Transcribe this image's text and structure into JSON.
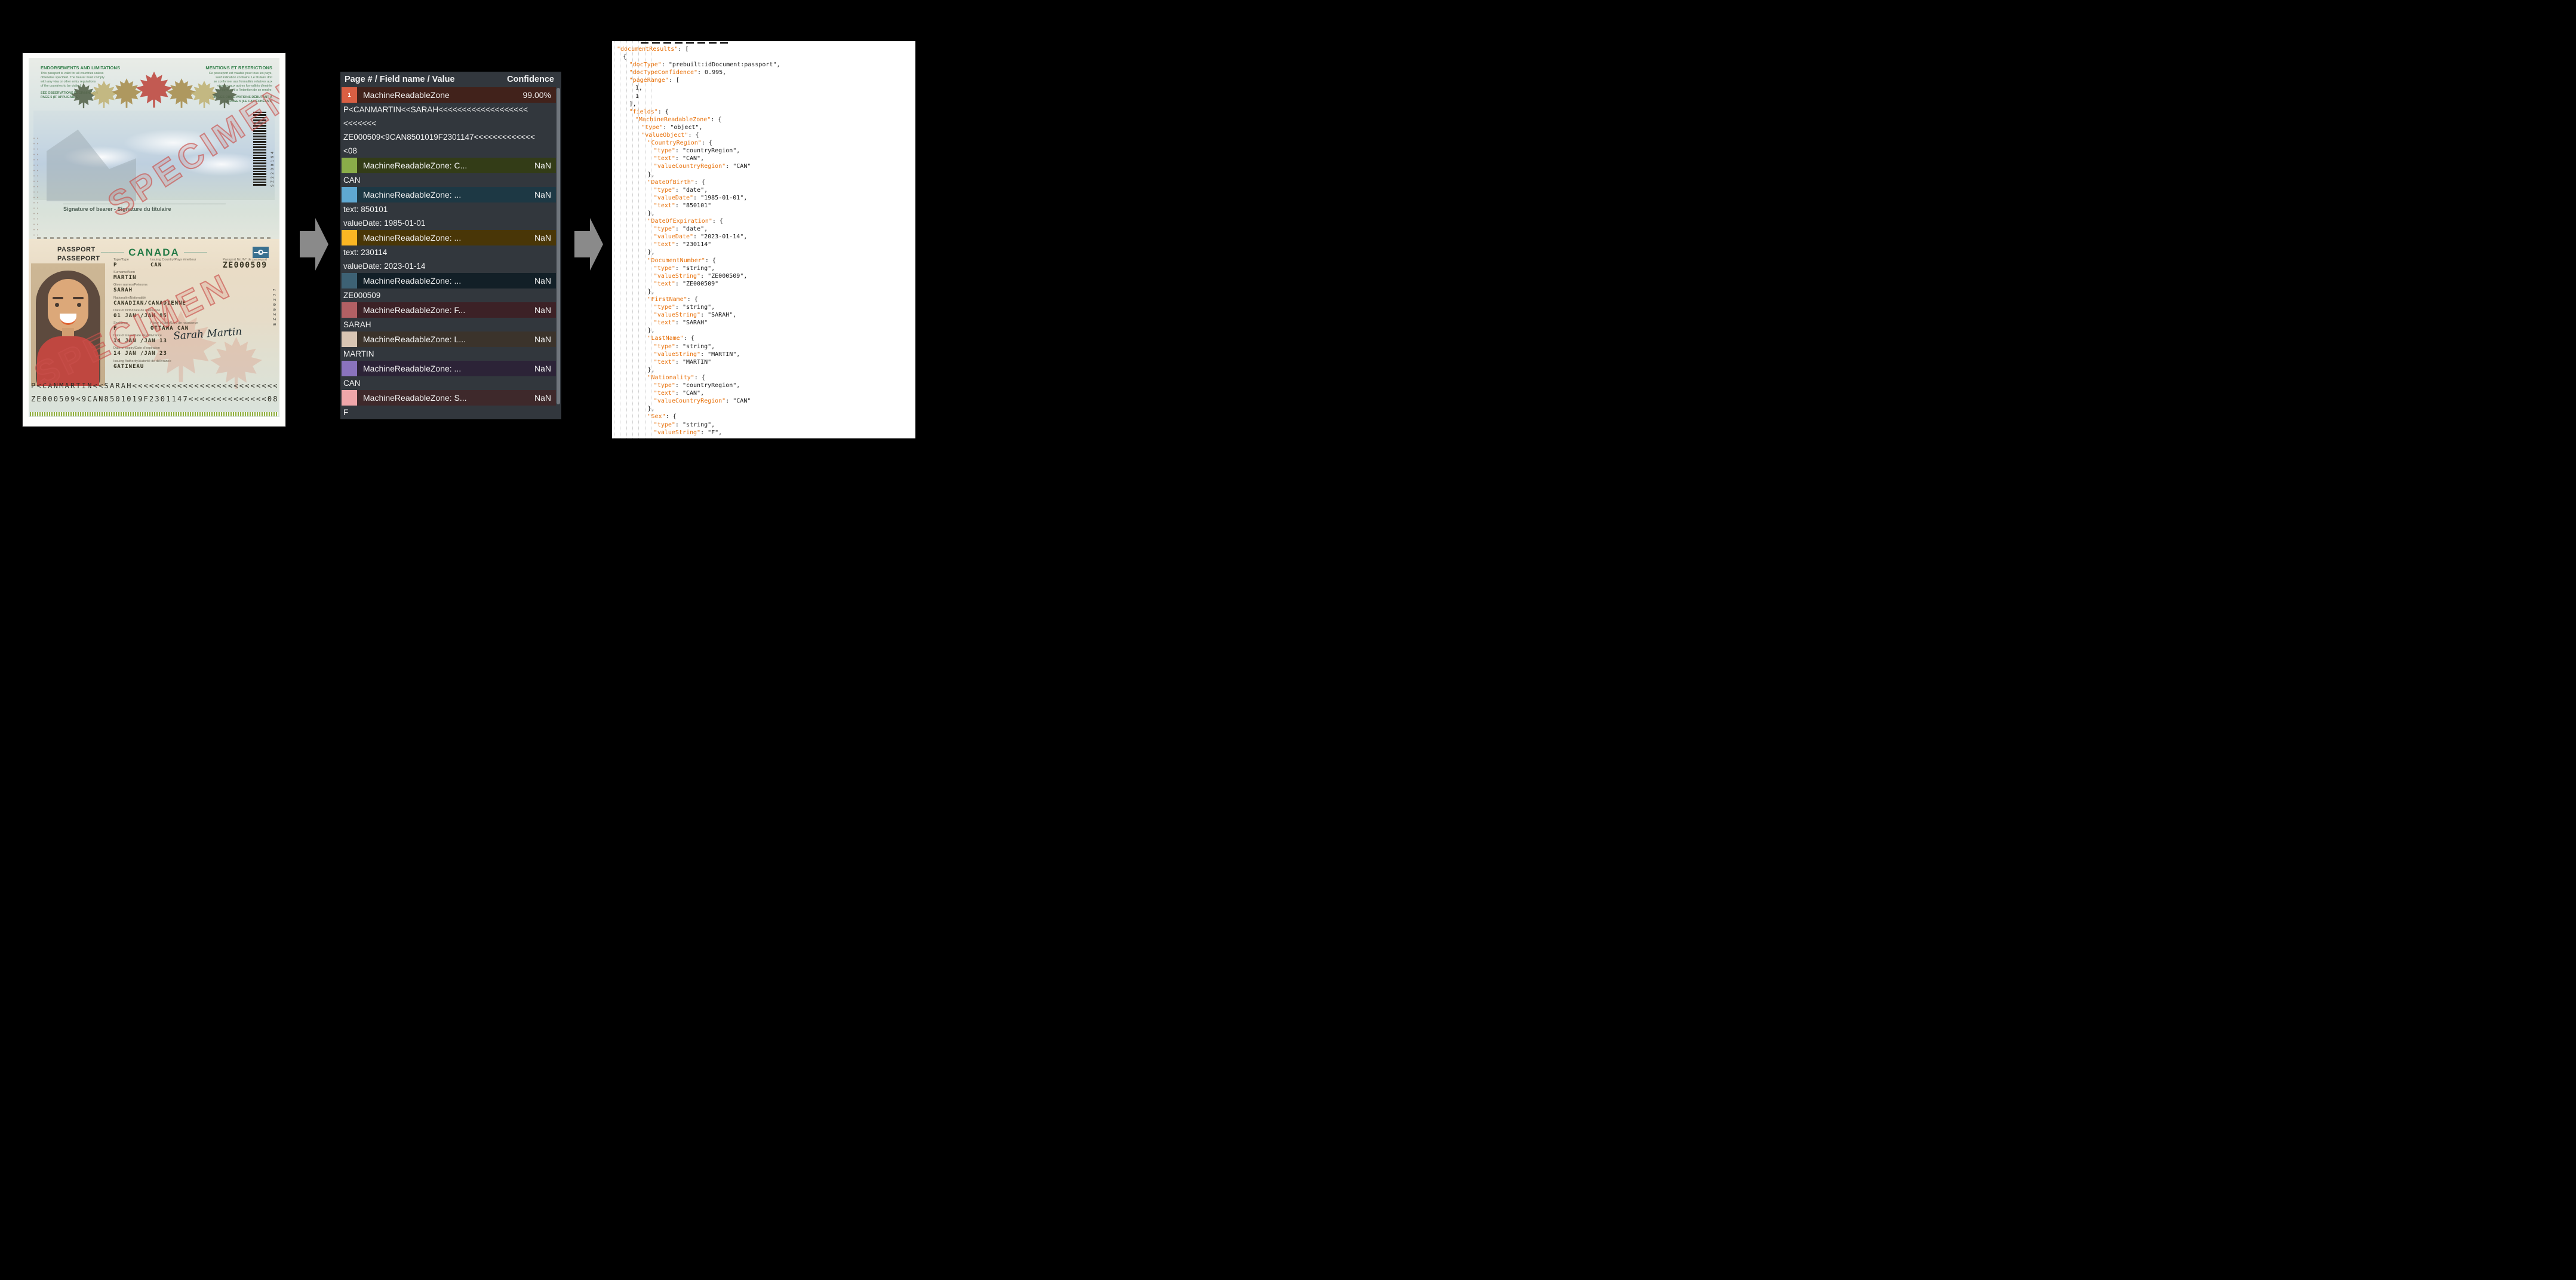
{
  "colors": {
    "background": "#000000",
    "arrow_gray": "#8a8a8a",
    "panel_bg": "#32373d",
    "json_key_orange": "#e8710a",
    "canada_green": "#237a46",
    "specimen_red": "#c9504c"
  },
  "passport": {
    "back_page": {
      "endorsements_title": "ENDORSEMENTS AND LIMITATIONS",
      "endorsements_lines": [
        "This passport is valid for all countries unless",
        "otherwise specified. The bearer must comply",
        "with any visa or other entry regulations",
        "of the countries to be visited."
      ],
      "endorsements_note_line1": "SEE OBSERVATIONS BEGINNING ON",
      "endorsements_note_line2": "PAGE 5 (IF APPLICABLE)",
      "mentions_title": "MENTIONS ET RESTRICTIONS",
      "mentions_lines": [
        "Ce passeport est valable pour tous les pays,",
        "sauf indication contraire. Le titulaire doit",
        "se conformer aux formalités relatives aux",
        "visas ou aux autres formalités d'entrée",
        "des pays où il a l'intention de se rendre."
      ],
      "mentions_note_line1": "VOIR LES OBSERVATIONS DÉBUTANT À",
      "mentions_note_line2": "LA PAGE 5 (LE CAS ÉCHÉANT)",
      "signature_label": "Signature of bearer - Signature du titulaire",
      "barcode_number": "SZ2200194",
      "specimen_text": "SPECIMEN",
      "leaf_colors": [
        "#57654c",
        "#c0b277",
        "#a98f50",
        "#bf4a41",
        "#a98f50",
        "#c0b277",
        "#57654c"
      ]
    },
    "data_page": {
      "passport_label": "PASSPORT",
      "passeport_label": "PASSEPORT",
      "country_title": "CANADA",
      "specimen_text": "SPECIMEN",
      "passport_no_label": "Passport No./N° de passeport",
      "passport_no_value": "ZE000509",
      "field_groups": [
        {
          "row": [
            {
              "label": "Type/Type",
              "value": "P"
            },
            {
              "label": "Issuing Country/Pays émetteur",
              "value": "CAN"
            }
          ]
        },
        {
          "label": "Surname/Nom",
          "value": "MARTIN"
        },
        {
          "label": "Given names/Prénoms",
          "value": "SARAH"
        },
        {
          "label": "Nationality/Nationalité",
          "value": "CANADIAN/CANADIENNE"
        },
        {
          "label": "Date of birth/Date de naissance",
          "value": "01 JAN /JAN  85"
        },
        {
          "row": [
            {
              "label": "Sex/Sexe",
              "value": "F"
            },
            {
              "label": "Place of birth/Lieu de naissance",
              "value": "OTTAWA CAN"
            }
          ]
        },
        {
          "label": "Date of issue/Date de délivrance",
          "value": "14 JAN /JAN  13"
        },
        {
          "label": "Date of expiry/Date d'expiration",
          "value": "14 JAN /JAN  23"
        },
        {
          "label": "Issuing Authority/Autorité de délivrance",
          "value": "GATINEAU"
        }
      ],
      "signature_script": "Sarah Martin",
      "perforation_number": "EZZ00277",
      "mrz_line1": "P<CANMARTIN<<SARAH<<<<<<<<<<<<<<<<<<<<<<<<<<",
      "mrz_line2": "ZE000509<9CAN8501019F2301147<<<<<<<<<<<<<<08"
    }
  },
  "fields_panel": {
    "header_left": "Page # / Field name / Value",
    "header_right": "Confidence",
    "rows": [
      {
        "page": "1",
        "label": "MachineReadableZone",
        "confidence": "99.00%",
        "chip": "#d95f43",
        "row_bg": "#41221b",
        "values": [
          "P<CANMARTIN<<SARAH<<<<<<<<<<<<<<<<<<<",
          "<<<<<<<",
          "ZE000509<9CAN8501019F2301147<<<<<<<<<<<<<",
          "<08"
        ]
      },
      {
        "page": "",
        "label": "MachineReadableZone: C...",
        "confidence": "NaN",
        "chip": "#8aad49",
        "row_bg": "#333c17",
        "values": [
          "CAN"
        ]
      },
      {
        "page": "",
        "label": "MachineReadableZone: ...",
        "confidence": "NaN",
        "chip": "#5fa8d1",
        "row_bg": "#1d3844",
        "values": [
          "text: 850101",
          "valueDate: 1985-01-01"
        ]
      },
      {
        "page": "",
        "label": "MachineReadableZone: ...",
        "confidence": "NaN",
        "chip": "#fbb623",
        "row_bg": "#493607",
        "values": [
          "text: 230114",
          "valueDate: 2023-01-14"
        ]
      },
      {
        "page": "",
        "label": "MachineReadableZone: ...",
        "confidence": "NaN",
        "chip": "#3d6174",
        "row_bg": "#121f27",
        "values": [
          "ZE000509"
        ]
      },
      {
        "page": "",
        "label": "MachineReadableZone: F...",
        "confidence": "NaN",
        "chip": "#b26064",
        "row_bg": "#3c2126",
        "values": [
          "SARAH"
        ]
      },
      {
        "page": "",
        "label": "MachineReadableZone: L...",
        "confidence": "NaN",
        "chip": "#d8c5b3",
        "row_bg": "#3b332b",
        "values": [
          "MARTIN"
        ]
      },
      {
        "page": "",
        "label": "MachineReadableZone: ...",
        "confidence": "NaN",
        "chip": "#8a73bd",
        "row_bg": "#2c2337",
        "values": [
          "CAN"
        ]
      },
      {
        "page": "",
        "label": "MachineReadableZone: S...",
        "confidence": "NaN",
        "chip": "#efa6a9",
        "row_bg": "#3e292b",
        "values": [
          "F"
        ]
      }
    ]
  },
  "json_panel": {
    "lines": [
      {
        "indent": 0,
        "key": "documentResults",
        "rest": ": ["
      },
      {
        "indent": 1,
        "key": null,
        "rest": "{"
      },
      {
        "indent": 2,
        "key": "docType",
        "rest": ": \"prebuilt:idDocument:passport\","
      },
      {
        "indent": 2,
        "key": "docTypeConfidence",
        "rest": ": 0.995,"
      },
      {
        "indent": 2,
        "key": "pageRange",
        "rest": ": ["
      },
      {
        "indent": 3,
        "key": null,
        "rest": "1,"
      },
      {
        "indent": 3,
        "key": null,
        "rest": "1"
      },
      {
        "indent": 2,
        "key": null,
        "rest": "],"
      },
      {
        "indent": 2,
        "key": "fields",
        "rest": ": {"
      },
      {
        "indent": 3,
        "key": "MachineReadableZone",
        "rest": ": {"
      },
      {
        "indent": 4,
        "key": "type",
        "rest": ": \"object\","
      },
      {
        "indent": 4,
        "key": "valueObject",
        "rest": ": {"
      },
      {
        "indent": 5,
        "key": "CountryRegion",
        "rest": ": {"
      },
      {
        "indent": 6,
        "key": "type",
        "rest": ": \"countryRegion\","
      },
      {
        "indent": 6,
        "key": "text",
        "rest": ": \"CAN\","
      },
      {
        "indent": 6,
        "key": "valueCountryRegion",
        "rest": ": \"CAN\""
      },
      {
        "indent": 5,
        "key": null,
        "rest": "},"
      },
      {
        "indent": 5,
        "key": "DateOfBirth",
        "rest": ": {"
      },
      {
        "indent": 6,
        "key": "type",
        "rest": ": \"date\","
      },
      {
        "indent": 6,
        "key": "valueDate",
        "rest": ": \"1985-01-01\","
      },
      {
        "indent": 6,
        "key": "text",
        "rest": ": \"850101\""
      },
      {
        "indent": 5,
        "key": null,
        "rest": "},"
      },
      {
        "indent": 5,
        "key": "DateOfExpiration",
        "rest": ": {"
      },
      {
        "indent": 6,
        "key": "type",
        "rest": ": \"date\","
      },
      {
        "indent": 6,
        "key": "valueDate",
        "rest": ": \"2023-01-14\","
      },
      {
        "indent": 6,
        "key": "text",
        "rest": ": \"230114\""
      },
      {
        "indent": 5,
        "key": null,
        "rest": "},"
      },
      {
        "indent": 5,
        "key": "DocumentNumber",
        "rest": ": {"
      },
      {
        "indent": 6,
        "key": "type",
        "rest": ": \"string\","
      },
      {
        "indent": 6,
        "key": "valueString",
        "rest": ": \"ZE000509\","
      },
      {
        "indent": 6,
        "key": "text",
        "rest": ": \"ZE000509\""
      },
      {
        "indent": 5,
        "key": null,
        "rest": "},"
      },
      {
        "indent": 5,
        "key": "FirstName",
        "rest": ": {"
      },
      {
        "indent": 6,
        "key": "type",
        "rest": ": \"string\","
      },
      {
        "indent": 6,
        "key": "valueString",
        "rest": ": \"SARAH\","
      },
      {
        "indent": 6,
        "key": "text",
        "rest": ": \"SARAH\""
      },
      {
        "indent": 5,
        "key": null,
        "rest": "},"
      },
      {
        "indent": 5,
        "key": "LastName",
        "rest": ": {"
      },
      {
        "indent": 6,
        "key": "type",
        "rest": ": \"string\","
      },
      {
        "indent": 6,
        "key": "valueString",
        "rest": ": \"MARTIN\","
      },
      {
        "indent": 6,
        "key": "text",
        "rest": ": \"MARTIN\""
      },
      {
        "indent": 5,
        "key": null,
        "rest": "},"
      },
      {
        "indent": 5,
        "key": "Nationality",
        "rest": ": {"
      },
      {
        "indent": 6,
        "key": "type",
        "rest": ": \"countryRegion\","
      },
      {
        "indent": 6,
        "key": "text",
        "rest": ": \"CAN\","
      },
      {
        "indent": 6,
        "key": "valueCountryRegion",
        "rest": ": \"CAN\""
      },
      {
        "indent": 5,
        "key": null,
        "rest": "},"
      },
      {
        "indent": 5,
        "key": "Sex",
        "rest": ": {"
      },
      {
        "indent": 6,
        "key": "type",
        "rest": ": \"string\","
      },
      {
        "indent": 6,
        "key": "valueString",
        "rest": ": \"F\","
      }
    ]
  }
}
